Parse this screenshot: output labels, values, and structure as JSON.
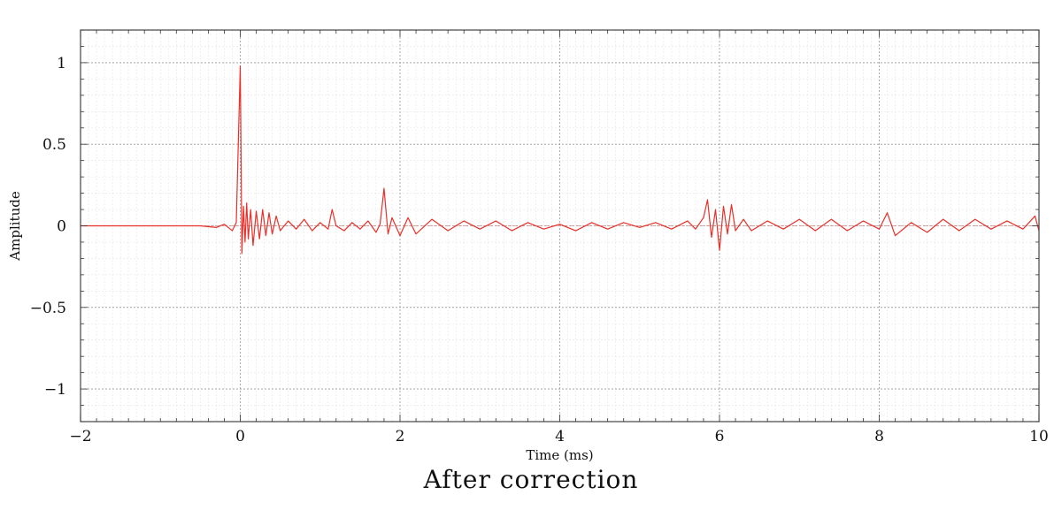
{
  "caption": "After correction",
  "chart_data": {
    "type": "line",
    "title": "",
    "xlabel": "Time (ms)",
    "ylabel": "Amplitude",
    "xlim": [
      -2,
      10
    ],
    "ylim": [
      -1.2,
      1.2
    ],
    "xticks": [
      -2,
      0,
      2,
      4,
      6,
      8,
      10
    ],
    "xtick_labels": [
      "−2",
      "0",
      "2",
      "4",
      "6",
      "8",
      "10"
    ],
    "yticks": [
      -1,
      -0.5,
      0,
      0.5,
      1
    ],
    "ytick_labels": [
      "−1",
      "−0.5",
      "0",
      "0.5",
      "1"
    ],
    "grid": true,
    "legend": "none",
    "series_color": "#e8302a",
    "series": [
      {
        "x": [
          -2,
          -1,
          -0.5,
          -0.3,
          -0.2,
          -0.1,
          -0.05,
          0,
          0.02,
          0.04,
          0.06,
          0.08,
          0.1,
          0.13,
          0.16,
          0.2,
          0.24,
          0.28,
          0.32,
          0.36,
          0.4,
          0.45,
          0.5,
          0.6,
          0.7,
          0.8,
          0.9,
          1.0,
          1.1,
          1.15,
          1.2,
          1.3,
          1.4,
          1.5,
          1.6,
          1.7,
          1.75,
          1.8,
          1.85,
          1.9,
          2.0,
          2.1,
          2.2,
          2.4,
          2.6,
          2.8,
          3.0,
          3.2,
          3.4,
          3.6,
          3.8,
          4.0,
          4.2,
          4.4,
          4.6,
          4.8,
          5.0,
          5.2,
          5.4,
          5.6,
          5.7,
          5.8,
          5.85,
          5.9,
          5.95,
          6.0,
          6.05,
          6.1,
          6.15,
          6.2,
          6.3,
          6.4,
          6.6,
          6.8,
          7.0,
          7.2,
          7.4,
          7.6,
          7.8,
          8.0,
          8.1,
          8.2,
          8.4,
          8.6,
          8.8,
          9.0,
          9.2,
          9.4,
          9.6,
          9.8,
          9.95,
          10.0
        ],
        "y": [
          0,
          0,
          0,
          -0.01,
          0.01,
          -0.03,
          0.02,
          0.98,
          -0.17,
          0.12,
          -0.1,
          0.14,
          -0.08,
          0.1,
          -0.12,
          0.09,
          -0.08,
          0.1,
          -0.06,
          0.08,
          -0.05,
          0.06,
          -0.03,
          0.03,
          -0.02,
          0.04,
          -0.03,
          0.02,
          -0.02,
          0.1,
          0.0,
          -0.03,
          0.02,
          -0.02,
          0.03,
          -0.04,
          0.01,
          0.23,
          -0.05,
          0.05,
          -0.06,
          0.05,
          -0.05,
          0.04,
          -0.03,
          0.03,
          -0.02,
          0.03,
          -0.03,
          0.02,
          -0.02,
          0.01,
          -0.03,
          0.02,
          -0.02,
          0.02,
          -0.01,
          0.02,
          -0.02,
          0.03,
          -0.02,
          0.05,
          0.16,
          -0.07,
          0.1,
          -0.15,
          0.12,
          -0.05,
          0.13,
          -0.03,
          0.04,
          -0.03,
          0.03,
          -0.02,
          0.04,
          -0.03,
          0.04,
          -0.03,
          0.03,
          -0.02,
          0.08,
          -0.06,
          0.02,
          -0.04,
          0.04,
          -0.03,
          0.04,
          -0.02,
          0.03,
          -0.02,
          0.06,
          -0.03
        ]
      }
    ]
  }
}
